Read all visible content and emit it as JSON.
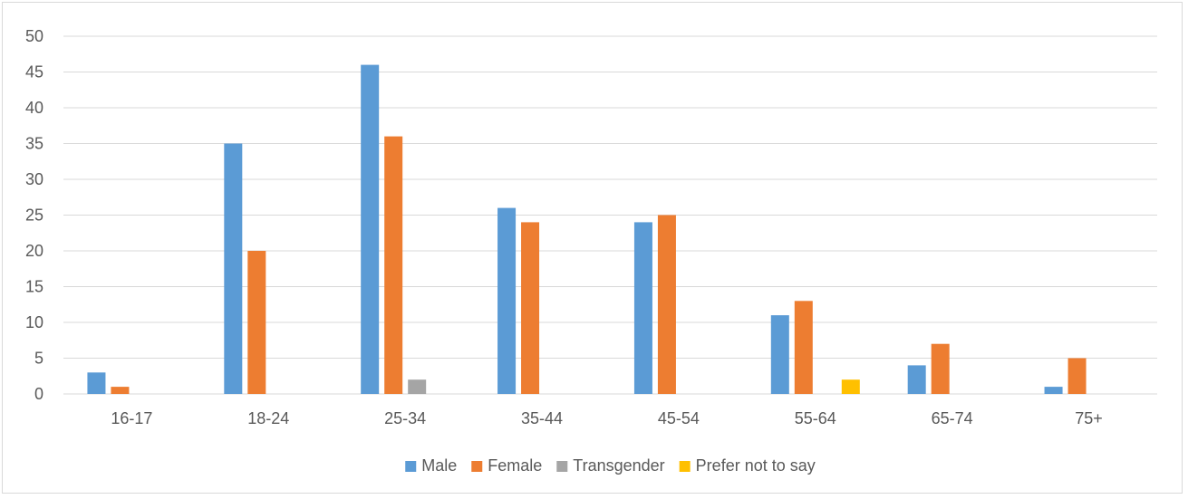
{
  "chart_data": {
    "type": "bar",
    "categories": [
      "16-17",
      "18-24",
      "25-34",
      "35-44",
      "45-54",
      "55-64",
      "65-74",
      "75+"
    ],
    "series": [
      {
        "name": "Male",
        "color": "#5b9bd5",
        "values": [
          3,
          35,
          46,
          26,
          24,
          11,
          4,
          1
        ]
      },
      {
        "name": "Female",
        "color": "#ed7d31",
        "values": [
          1,
          20,
          36,
          24,
          25,
          13,
          7,
          5
        ]
      },
      {
        "name": "Transgender",
        "color": "#a5a5a5",
        "values": [
          0,
          0,
          2,
          0,
          0,
          0,
          0,
          0
        ]
      },
      {
        "name": "Prefer not to say",
        "color": "#ffc000",
        "values": [
          0,
          0,
          0,
          0,
          0,
          2,
          0,
          0
        ]
      }
    ],
    "ylim": [
      0,
      50
    ],
    "yticks": [
      0,
      5,
      10,
      15,
      20,
      25,
      30,
      35,
      40,
      45,
      50
    ],
    "grid": true,
    "legend_position": "bottom",
    "gridline_color": "#d9d9d9",
    "text_color": "#595959"
  }
}
